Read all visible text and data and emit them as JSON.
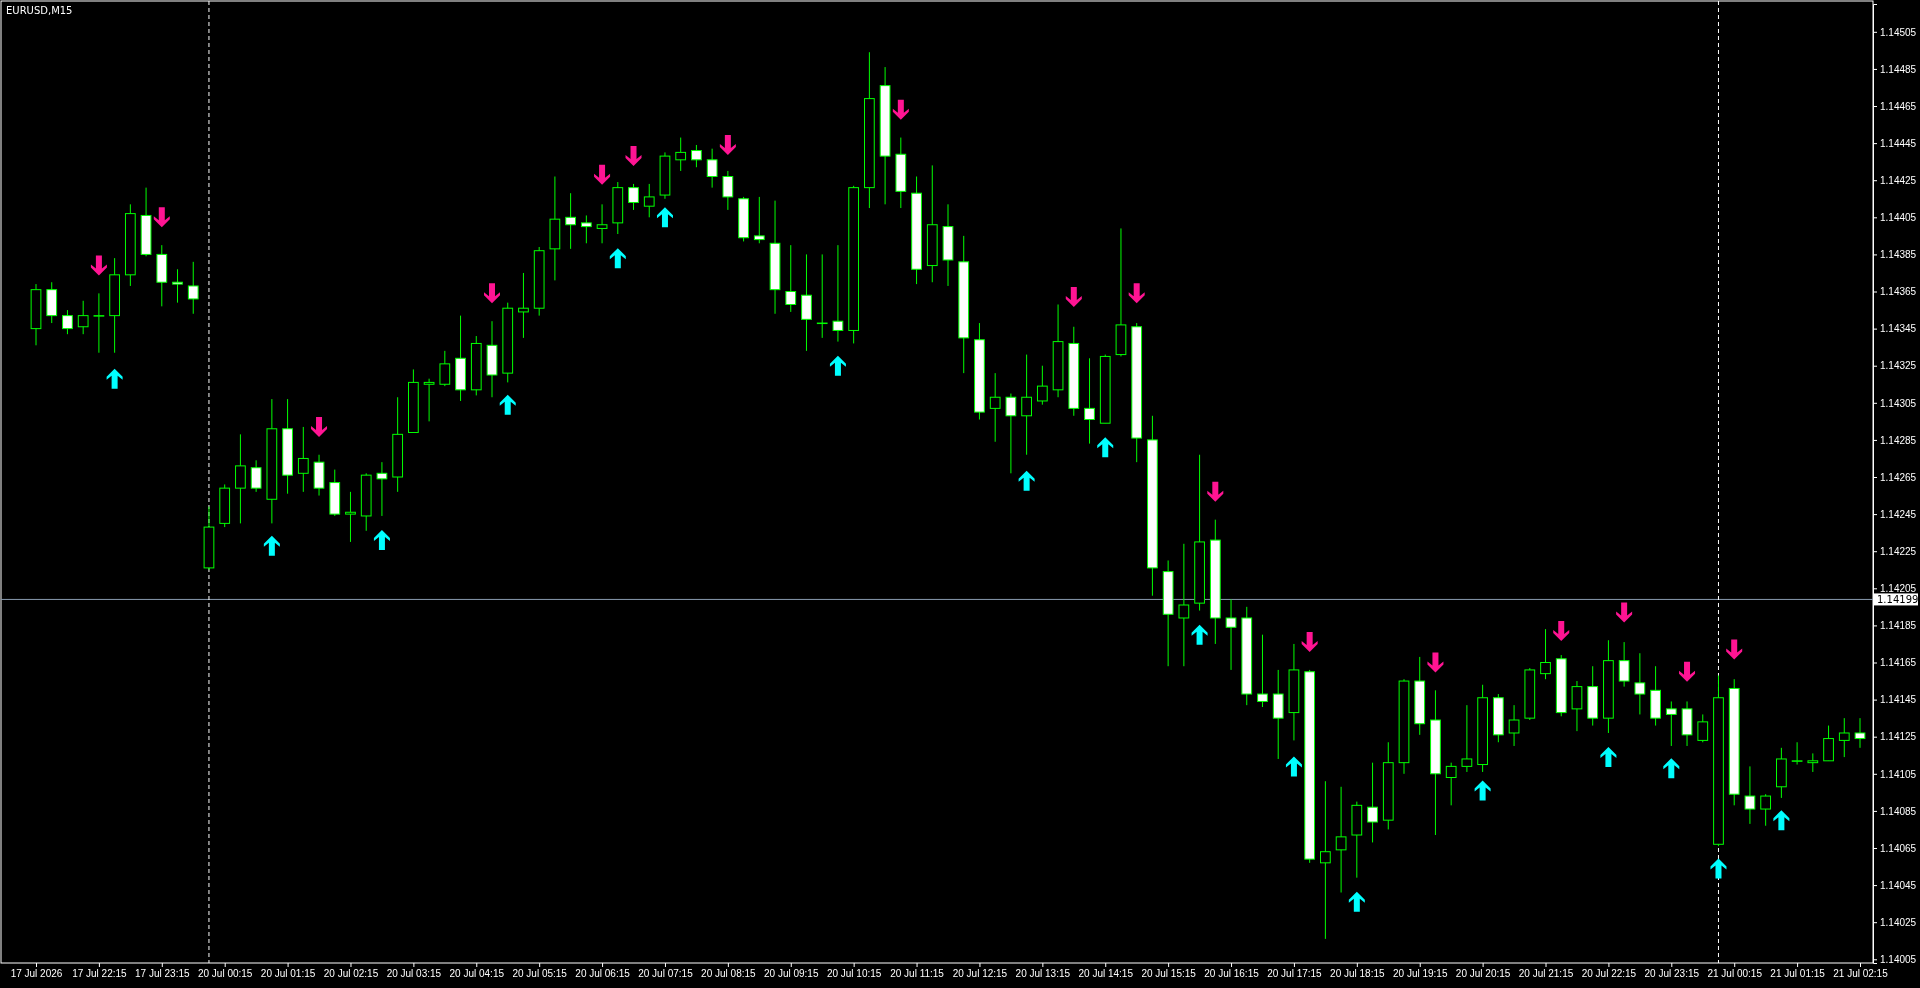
{
  "chart_data": {
    "type": "candlestick",
    "title": "EURUSD,M15",
    "color": "#00ff00",
    "categories": [
      "17 Jul 2026",
      null,
      null,
      null,
      "17 Jul 22:15",
      null,
      null,
      null,
      "17 Jul 23:15",
      null,
      null,
      null,
      "20 Jul 00:15",
      null,
      null,
      null,
      "20 Jul 01:15",
      null,
      null,
      null,
      "20 Jul 02:15",
      null,
      null,
      null,
      "20 Jul 03:15",
      null,
      null,
      null,
      "20 Jul 04:15",
      null,
      null,
      null,
      "20 Jul 05:15",
      null,
      null,
      null,
      "20 Jul 06:15",
      null,
      null,
      null,
      "20 Jul 07:15",
      null,
      null,
      null,
      "20 Jul 08:15",
      null,
      null,
      null,
      "20 Jul 09:15",
      null,
      null,
      null,
      "20 Jul 10:15",
      null,
      null,
      null,
      "20 Jul 11:15",
      null,
      null,
      null,
      "20 Jul 12:15",
      null,
      null,
      null,
      "20 Jul 13:15",
      null,
      null,
      null,
      "20 Jul 14:15",
      null,
      null,
      null,
      "20 Jul 15:15",
      null,
      null,
      null,
      "20 Jul 16:15",
      null,
      null,
      null,
      "20 Jul 17:15",
      null,
      null,
      null,
      "20 Jul 18:15",
      null,
      null,
      null,
      "20 Jul 19:15",
      null,
      null,
      null,
      "20 Jul 20:15",
      null,
      null,
      null,
      "20 Jul 21:15",
      null,
      null,
      null,
      "20 Jul 22:15",
      null,
      null,
      null,
      "20 Jul 23:15",
      null,
      null,
      null,
      "21 Jul 00:15",
      null,
      null,
      null,
      "21 Jul 01:15",
      null,
      null,
      null,
      "21 Jul 02:15"
    ],
    "ohlc": [
      [
        1.14345,
        1.14369,
        1.14336,
        1.14366
      ],
      [
        1.14366,
        1.1437,
        1.14348,
        1.14352
      ],
      [
        1.14352,
        1.14355,
        1.14342,
        1.14345
      ],
      [
        1.14346,
        1.1436,
        1.14342,
        1.14352
      ],
      [
        1.14352,
        1.14364,
        1.14332,
        1.14352
      ],
      [
        1.14352,
        1.14383,
        1.14332,
        1.14374
      ],
      [
        1.14374,
        1.14412,
        1.14368,
        1.14407
      ],
      [
        1.14406,
        1.14421,
        1.14384,
        1.14385
      ],
      [
        1.14385,
        1.1439,
        1.14357,
        1.1437
      ],
      [
        1.1437,
        1.14377,
        1.14359,
        1.14369
      ],
      [
        1.14368,
        1.14381,
        1.14353,
        1.14361
      ],
      [
        1.14216,
        1.14249,
        1.14215,
        1.14238
      ],
      [
        1.1424,
        1.14261,
        1.14238,
        1.14259
      ],
      [
        1.14259,
        1.14288,
        1.1424,
        1.14271
      ],
      [
        1.1427,
        1.14274,
        1.14257,
        1.14259
      ],
      [
        1.14253,
        1.14307,
        1.1424,
        1.14291
      ],
      [
        1.14291,
        1.14307,
        1.14256,
        1.14266
      ],
      [
        1.14267,
        1.14292,
        1.14257,
        1.14275
      ],
      [
        1.14273,
        1.14277,
        1.14255,
        1.14259
      ],
      [
        1.14262,
        1.14269,
        1.14244,
        1.14245
      ],
      [
        1.14245,
        1.14257,
        1.1423,
        1.14246
      ],
      [
        1.14244,
        1.14267,
        1.14236,
        1.14266
      ],
      [
        1.14267,
        1.14273,
        1.14244,
        1.14264
      ],
      [
        1.14265,
        1.14308,
        1.14257,
        1.14288
      ],
      [
        1.14289,
        1.14323,
        1.14289,
        1.14316
      ],
      [
        1.14315,
        1.14318,
        1.14295,
        1.14316
      ],
      [
        1.14315,
        1.14333,
        1.14314,
        1.14326
      ],
      [
        1.14329,
        1.14352,
        1.14306,
        1.14312
      ],
      [
        1.14312,
        1.14341,
        1.14309,
        1.14337
      ],
      [
        1.14336,
        1.14349,
        1.14308,
        1.1432
      ],
      [
        1.14321,
        1.14359,
        1.14316,
        1.14356
      ],
      [
        1.14354,
        1.14375,
        1.1434,
        1.14356
      ],
      [
        1.14356,
        1.14389,
        1.14352,
        1.14387
      ],
      [
        1.14388,
        1.14427,
        1.14371,
        1.14404
      ],
      [
        1.14405,
        1.14418,
        1.14388,
        1.14401
      ],
      [
        1.14402,
        1.14406,
        1.14391,
        1.144
      ],
      [
        1.14399,
        1.14412,
        1.14391,
        1.14401
      ],
      [
        1.14402,
        1.14424,
        1.14396,
        1.14421
      ],
      [
        1.14421,
        1.14423,
        1.14409,
        1.14413
      ],
      [
        1.14411,
        1.14423,
        1.14405,
        1.14416
      ],
      [
        1.14417,
        1.1444,
        1.14415,
        1.14438
      ],
      [
        1.14436,
        1.14448,
        1.1443,
        1.1444
      ],
      [
        1.14441,
        1.14444,
        1.14432,
        1.14436
      ],
      [
        1.14436,
        1.14442,
        1.14421,
        1.14427
      ],
      [
        1.14427,
        1.1443,
        1.14409,
        1.14416
      ],
      [
        1.14415,
        1.14416,
        1.14392,
        1.14394
      ],
      [
        1.14395,
        1.14416,
        1.14391,
        1.14393
      ],
      [
        1.14391,
        1.14414,
        1.14353,
        1.14366
      ],
      [
        1.14365,
        1.1439,
        1.14354,
        1.14358
      ],
      [
        1.14363,
        1.14385,
        1.14333,
        1.1435
      ],
      [
        1.14348,
        1.14385,
        1.1434,
        1.14348
      ],
      [
        1.14349,
        1.1439,
        1.14338,
        1.14344
      ],
      [
        1.14344,
        1.14422,
        1.14337,
        1.14421
      ],
      [
        1.14421,
        1.14494,
        1.1441,
        1.14469
      ],
      [
        1.14476,
        1.14486,
        1.14412,
        1.14438
      ],
      [
        1.14439,
        1.14448,
        1.1441,
        1.14419
      ],
      [
        1.14418,
        1.14427,
        1.14369,
        1.14377
      ],
      [
        1.14379,
        1.14433,
        1.1437,
        1.14401
      ],
      [
        1.144,
        1.14412,
        1.14368,
        1.14382
      ],
      [
        1.14381,
        1.14395,
        1.14321,
        1.1434
      ],
      [
        1.14339,
        1.14348,
        1.14296,
        1.143
      ],
      [
        1.14302,
        1.14321,
        1.14284,
        1.14308
      ],
      [
        1.14308,
        1.1431,
        1.14267,
        1.14298
      ],
      [
        1.14298,
        1.14331,
        1.14277,
        1.14308
      ],
      [
        1.14306,
        1.14325,
        1.14304,
        1.14314
      ],
      [
        1.14312,
        1.14358,
        1.14308,
        1.14338
      ],
      [
        1.14337,
        1.14346,
        1.14298,
        1.14302
      ],
      [
        1.14302,
        1.14329,
        1.14283,
        1.14296
      ],
      [
        1.14294,
        1.14331,
        1.14294,
        1.1433
      ],
      [
        1.14331,
        1.14399,
        1.1433,
        1.14347
      ],
      [
        1.14346,
        1.14348,
        1.14273,
        1.14286
      ],
      [
        1.14285,
        1.14298,
        1.14201,
        1.14216
      ],
      [
        1.14214,
        1.1422,
        1.14163,
        1.14191
      ],
      [
        1.14189,
        1.14229,
        1.14163,
        1.14196
      ],
      [
        1.14197,
        1.14277,
        1.14193,
        1.1423
      ],
      [
        1.14231,
        1.14242,
        1.14175,
        1.14189
      ],
      [
        1.14189,
        1.14199,
        1.14161,
        1.14184
      ],
      [
        1.14189,
        1.14195,
        1.14142,
        1.14148
      ],
      [
        1.14148,
        1.1418,
        1.14141,
        1.14144
      ],
      [
        1.14148,
        1.14161,
        1.14113,
        1.14135
      ],
      [
        1.14138,
        1.14175,
        1.14123,
        1.14161
      ],
      [
        1.1416,
        1.14161,
        1.14057,
        1.14059
      ],
      [
        1.14057,
        1.14101,
        1.14016,
        1.14063
      ],
      [
        1.14064,
        1.14098,
        1.14041,
        1.14071
      ],
      [
        1.14072,
        1.1409,
        1.14049,
        1.14088
      ],
      [
        1.14087,
        1.14111,
        1.14068,
        1.14079
      ],
      [
        1.1408,
        1.14122,
        1.14075,
        1.14111
      ],
      [
        1.14111,
        1.14156,
        1.14105,
        1.14155
      ],
      [
        1.14155,
        1.14168,
        1.14126,
        1.14132
      ],
      [
        1.14134,
        1.1415,
        1.14072,
        1.14105
      ],
      [
        1.14103,
        1.14111,
        1.14088,
        1.14109
      ],
      [
        1.14109,
        1.14142,
        1.14106,
        1.14113
      ],
      [
        1.1411,
        1.14153,
        1.14106,
        1.14146
      ],
      [
        1.14146,
        1.14148,
        1.14122,
        1.14126
      ],
      [
        1.14127,
        1.14142,
        1.1412,
        1.14134
      ],
      [
        1.14135,
        1.14162,
        1.14134,
        1.14161
      ],
      [
        1.14159,
        1.14183,
        1.14156,
        1.14165
      ],
      [
        1.14167,
        1.14169,
        1.14136,
        1.14138
      ],
      [
        1.1414,
        1.14155,
        1.14128,
        1.14152
      ],
      [
        1.14152,
        1.14163,
        1.14131,
        1.14135
      ],
      [
        1.14135,
        1.14177,
        1.14127,
        1.14166
      ],
      [
        1.14166,
        1.14176,
        1.14152,
        1.14155
      ],
      [
        1.14154,
        1.1417,
        1.14137,
        1.14148
      ],
      [
        1.1415,
        1.14163,
        1.14131,
        1.14135
      ],
      [
        1.1414,
        1.14144,
        1.1412,
        1.14137
      ],
      [
        1.1414,
        1.14144,
        1.1412,
        1.14126
      ],
      [
        1.14123,
        1.14137,
        1.14122,
        1.14133
      ],
      [
        1.14067,
        1.14158,
        1.14066,
        1.14146
      ],
      [
        1.14151,
        1.14156,
        1.14088,
        1.14094
      ],
      [
        1.14093,
        1.14109,
        1.14078,
        1.14086
      ],
      [
        1.14086,
        1.14094,
        1.14077,
        1.14093
      ],
      [
        1.14098,
        1.14119,
        1.14092,
        1.14113
      ],
      [
        1.14112,
        1.14122,
        1.1411,
        1.14112
      ],
      [
        1.14111,
        1.14116,
        1.14106,
        1.14112
      ],
      [
        1.14112,
        1.14131,
        1.14112,
        1.14124
      ],
      [
        1.14123,
        1.14135,
        1.14114,
        1.14127
      ],
      [
        1.14127,
        1.14135,
        1.14119,
        1.14124
      ]
    ],
    "series": [
      {
        "type": "scatter",
        "color": "#00ffff",
        "values": [
          null,
          null,
          null,
          null,
          null,
          1.14318,
          null,
          null,
          null,
          null,
          null,
          null,
          null,
          null,
          null,
          1.14228,
          null,
          null,
          null,
          null,
          null,
          null,
          1.14231,
          null,
          null,
          null,
          null,
          null,
          null,
          null,
          1.14304,
          null,
          null,
          null,
          null,
          null,
          null,
          1.14383,
          null,
          null,
          1.14405,
          null,
          null,
          null,
          null,
          null,
          null,
          null,
          null,
          null,
          null,
          1.14325,
          null,
          null,
          null,
          null,
          null,
          null,
          null,
          null,
          null,
          null,
          null,
          1.14263,
          null,
          null,
          null,
          null,
          1.14281,
          null,
          null,
          null,
          null,
          null,
          1.1418,
          null,
          null,
          null,
          null,
          null,
          1.14109,
          null,
          null,
          null,
          1.14036,
          null,
          null,
          null,
          null,
          null,
          null,
          null,
          1.14096,
          null,
          null,
          null,
          null,
          null,
          null,
          null,
          1.14114,
          null,
          null,
          null,
          1.14108,
          null,
          null,
          1.14054,
          null,
          null,
          null,
          1.1408,
          null,
          null,
          null,
          null,
          null
        ]
      },
      {
        "type": "scatter",
        "color": "#ff1493",
        "values": [
          null,
          null,
          null,
          null,
          1.14379,
          null,
          null,
          null,
          1.14405,
          null,
          null,
          null,
          null,
          null,
          null,
          null,
          null,
          null,
          1.14292,
          null,
          null,
          null,
          null,
          null,
          null,
          null,
          null,
          null,
          null,
          1.14364,
          null,
          null,
          null,
          null,
          null,
          null,
          1.14428,
          null,
          1.14438,
          null,
          null,
          null,
          null,
          null,
          1.14444,
          null,
          null,
          null,
          null,
          null,
          null,
          null,
          null,
          null,
          null,
          1.14463,
          null,
          null,
          null,
          null,
          null,
          null,
          null,
          null,
          null,
          null,
          1.14362,
          null,
          null,
          null,
          1.14364,
          null,
          null,
          null,
          null,
          1.14257,
          null,
          null,
          null,
          null,
          null,
          1.14176,
          null,
          null,
          null,
          null,
          null,
          null,
          null,
          1.14165,
          null,
          null,
          null,
          null,
          null,
          null,
          null,
          1.14182,
          null,
          null,
          null,
          1.14192,
          null,
          null,
          null,
          1.1416,
          null,
          null,
          1.14172,
          null,
          null,
          null,
          null,
          null,
          null,
          null,
          null
        ]
      }
    ],
    "ylim": [
      1.14003,
      1.1452
    ],
    "yticks": [
      1.14505,
      1.14485,
      1.14465,
      1.14445,
      1.14425,
      1.14405,
      1.14385,
      1.14365,
      1.14345,
      1.14325,
      1.14305,
      1.14285,
      1.14265,
      1.14245,
      1.14225,
      1.14205,
      1.14185,
      1.14165,
      1.14145,
      1.14125,
      1.14105,
      1.14085,
      1.14065,
      1.14045,
      1.14025,
      1.14005
    ],
    "ref_lines": [
      {
        "axis": "y",
        "value": 1.14199,
        "label": "1.14199",
        "color": "#8a9bb0",
        "line_style": "solid"
      }
    ]
  }
}
